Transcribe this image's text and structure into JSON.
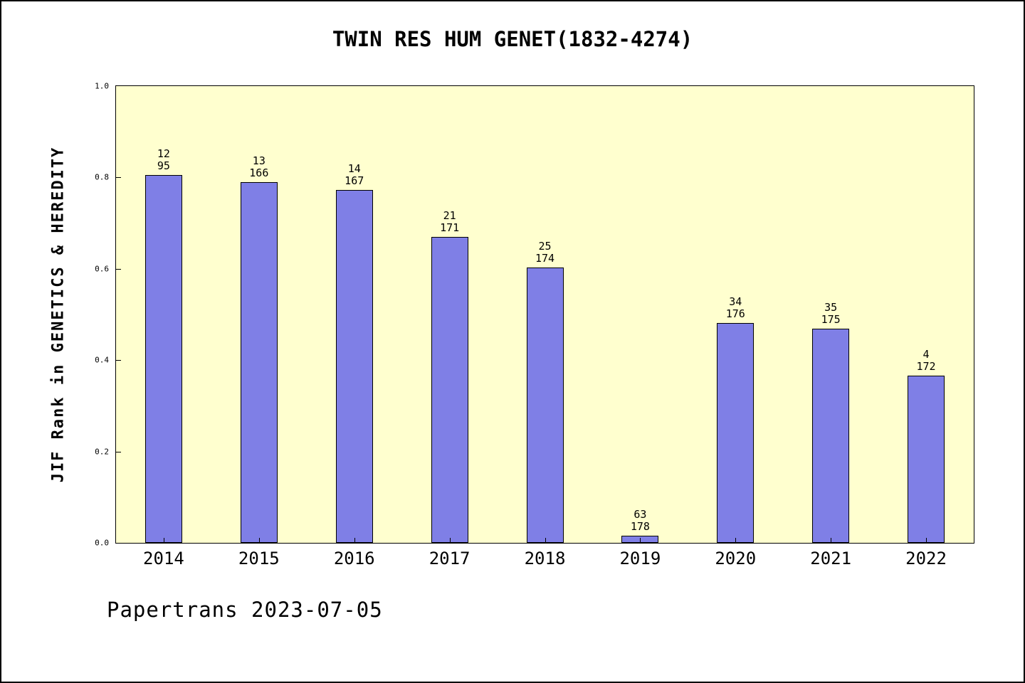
{
  "chart_data": {
    "type": "bar",
    "title": "TWIN RES HUM GENET(1832-4274)",
    "ylabel": "JIF Rank in GENETICS & HEREDITY",
    "xlabel": "",
    "ylim": [
      0.0,
      1.0
    ],
    "ytick_labels": [
      "0.0",
      "0.2",
      "0.4",
      "0.6",
      "0.8",
      "1.0"
    ],
    "grid": "off",
    "legend": "none",
    "categories": [
      "2014",
      "2015",
      "2016",
      "2017",
      "2018",
      "2019",
      "2020",
      "2021",
      "2022"
    ],
    "values": [
      0.805,
      0.789,
      0.772,
      0.67,
      0.603,
      0.016,
      0.482,
      0.469,
      0.366
    ],
    "bar_annotations": [
      {
        "rank": "12",
        "total": "95"
      },
      {
        "rank": "13",
        "total": "166"
      },
      {
        "rank": "14",
        "total": "167"
      },
      {
        "rank": "21",
        "total": "171"
      },
      {
        "rank": "25",
        "total": "174"
      },
      {
        "rank": "63",
        "total": "178"
      },
      {
        "rank": "34",
        "total": "176"
      },
      {
        "rank": "35",
        "total": "175"
      },
      {
        "rank": "4",
        "total": "172"
      }
    ],
    "colors": {
      "bar_fill": "#7f7fe6",
      "bar_border": "#000000",
      "plot_background": "#ffffcf",
      "page_background": "#ffffff",
      "axis": "#000000"
    }
  },
  "footer": {
    "text": "Papertrans 2023-07-05"
  }
}
